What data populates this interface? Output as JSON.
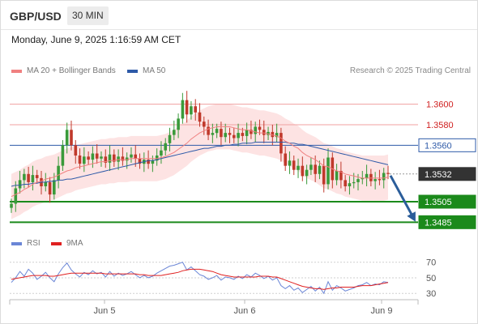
{
  "header": {
    "symbol": "GBP/USD",
    "timeframe": "30 MIN",
    "datetime": "Monday, June 9, 2025 1:16:59 AM CET"
  },
  "legend": {
    "items": [
      {
        "label": "MA 20 + Bollinger Bands",
        "color": "#f08080"
      },
      {
        "label": "MA 50",
        "color": "#2e5aa8"
      }
    ],
    "credit": "Research © 2025 Trading Central"
  },
  "colors": {
    "candle_up": "#3a9a3a",
    "candle_down": "#c0392b",
    "ma20": "#f08080",
    "ma50": "#2e5aa8",
    "bollinger_fill": "#fde3e3",
    "resistance": "#f0a0a0",
    "pivot": "#2e5aa8",
    "support": "#1b8a1b",
    "last_price": "#333333",
    "arrow": "#2b5d9a",
    "rsi": "#6b86d6",
    "rsi_ma": "#e02020"
  },
  "chart_data": [
    {
      "type": "candlestick",
      "x_ticks": [
        "Jun 5",
        "Jun 6",
        "Jun 9"
      ],
      "ylim": [
        1.3475,
        1.3625
      ],
      "closes": [
        1.3503,
        1.3518,
        1.3526,
        1.3532,
        1.3524,
        1.3531,
        1.3528,
        1.352,
        1.3524,
        1.3512,
        1.3526,
        1.354,
        1.356,
        1.3575,
        1.356,
        1.355,
        1.3542,
        1.3549,
        1.3546,
        1.3552,
        1.3547,
        1.3549,
        1.3543,
        1.3551,
        1.3544,
        1.3549,
        1.3545,
        1.3548,
        1.3551,
        1.3547,
        1.3542,
        1.3546,
        1.3542,
        1.3545,
        1.355,
        1.3555,
        1.3562,
        1.357,
        1.3575,
        1.3586,
        1.3604,
        1.359,
        1.3598,
        1.3592,
        1.3583,
        1.3578,
        1.357,
        1.3572,
        1.3576,
        1.3568,
        1.3572,
        1.357,
        1.3567,
        1.3572,
        1.3569,
        1.3575,
        1.3571,
        1.3578,
        1.3575,
        1.357,
        1.3573,
        1.3568,
        1.3572,
        1.3552,
        1.354,
        1.3545,
        1.3536,
        1.354,
        1.353,
        1.3536,
        1.3541,
        1.3532,
        1.354,
        1.3522,
        1.3548,
        1.3526,
        1.3535,
        1.3526,
        1.352,
        1.3523,
        1.3524,
        1.3527,
        1.3528,
        1.3532,
        1.3525,
        1.3527,
        1.3526,
        1.3533,
        1.3532
      ],
      "ma20": [
        1.351,
        1.3512,
        1.3514,
        1.3517,
        1.3519,
        1.3522,
        1.3524,
        1.3525,
        1.3527,
        1.3528,
        1.3529,
        1.3531,
        1.3533,
        1.3535,
        1.3536,
        1.3538,
        1.3539,
        1.354,
        1.3541,
        1.3542,
        1.3543,
        1.3544,
        1.3544,
        1.3545,
        1.3545,
        1.3546,
        1.3546,
        1.3546,
        1.3547,
        1.3547,
        1.3547,
        1.3547,
        1.3547,
        1.3547,
        1.3547,
        1.3548,
        1.3549,
        1.3551,
        1.3553,
        1.3556,
        1.3559,
        1.3562,
        1.3566,
        1.3569,
        1.3572,
        1.3574,
        1.3576,
        1.3577,
        1.3578,
        1.3578,
        1.3578,
        1.3578,
        1.3577,
        1.3576,
        1.3575,
        1.3575,
        1.3574,
        1.3573,
        1.3572,
        1.3572,
        1.3571,
        1.357,
        1.3569,
        1.3567,
        1.3564,
        1.3562,
        1.3559,
        1.3557,
        1.3553,
        1.355,
        1.3548,
        1.3546,
        1.3543,
        1.354,
        1.3539,
        1.3537,
        1.3535,
        1.3534,
        1.3532,
        1.3531,
        1.353,
        1.3529,
        1.3528,
        1.3528,
        1.3528,
        1.3528,
        1.3528,
        1.3528,
        1.3529
      ],
      "ma50": [
        1.352,
        1.3521,
        1.3521,
        1.3522,
        1.3522,
        1.3523,
        1.3523,
        1.3524,
        1.3524,
        1.3525,
        1.3525,
        1.3526,
        1.3526,
        1.3527,
        1.3527,
        1.3528,
        1.3529,
        1.353,
        1.3531,
        1.3532,
        1.3533,
        1.3534,
        1.3535,
        1.3536,
        1.3537,
        1.3538,
        1.3539,
        1.354,
        1.3541,
        1.3542,
        1.3543,
        1.3544,
        1.3545,
        1.3545,
        1.3546,
        1.3547,
        1.3548,
        1.3549,
        1.355,
        1.3551,
        1.3552,
        1.3553,
        1.3554,
        1.3555,
        1.3556,
        1.3557,
        1.3557,
        1.3558,
        1.3559,
        1.3559,
        1.356,
        1.356,
        1.3561,
        1.3561,
        1.3562,
        1.3562,
        1.3562,
        1.3563,
        1.3563,
        1.3563,
        1.3563,
        1.3563,
        1.3563,
        1.3563,
        1.3563,
        1.3562,
        1.3562,
        1.3561,
        1.3561,
        1.356,
        1.3559,
        1.3558,
        1.3557,
        1.3556,
        1.3555,
        1.3554,
        1.3553,
        1.3552,
        1.3551,
        1.355,
        1.3549,
        1.3548,
        1.3547,
        1.3546,
        1.3545,
        1.3544,
        1.3543,
        1.3542,
        1.3541
      ],
      "bollinger_width": 0.0022,
      "levels": [
        {
          "label": "1.3600",
          "value": 1.36,
          "kind": "resistance"
        },
        {
          "label": "1.3580",
          "value": 1.358,
          "kind": "resistance"
        },
        {
          "label": "1.3560",
          "value": 1.356,
          "kind": "pivot"
        },
        {
          "label": "1.3532",
          "value": 1.3532,
          "kind": "last"
        },
        {
          "label": "1.3505",
          "value": 1.3505,
          "kind": "support"
        },
        {
          "label": "1.3485",
          "value": 1.3485,
          "kind": "support"
        }
      ],
      "forecast_arrow": {
        "from": 1.3532,
        "to": 1.3485
      }
    },
    {
      "type": "line",
      "series": [
        {
          "name": "RSI",
          "color": "#6b86d6"
        },
        {
          "name": "9MA",
          "color": "#e02020"
        }
      ],
      "ylim": [
        25,
        78
      ],
      "y_ticks": [
        "70",
        "50",
        "30"
      ],
      "rsi": [
        44,
        50,
        58,
        52,
        61,
        56,
        48,
        52,
        57,
        50,
        45,
        55,
        63,
        69,
        60,
        55,
        51,
        57,
        54,
        59,
        55,
        57,
        51,
        58,
        52,
        56,
        53,
        55,
        58,
        54,
        50,
        53,
        50,
        52,
        56,
        59,
        62,
        65,
        66,
        68,
        70,
        60,
        64,
        59,
        54,
        52,
        48,
        50,
        53,
        47,
        51,
        50,
        48,
        52,
        49,
        54,
        51,
        56,
        53,
        49,
        52,
        47,
        50,
        40,
        36,
        40,
        34,
        37,
        31,
        35,
        39,
        33,
        38,
        30,
        45,
        34,
        40,
        37,
        33,
        35,
        37,
        40,
        41,
        44,
        40,
        42,
        41,
        45,
        44
      ],
      "rsi_ma": [
        48,
        49,
        50,
        51,
        52,
        53,
        53,
        53,
        53,
        52,
        52,
        53,
        54,
        55,
        56,
        56,
        56,
        56,
        56,
        56,
        56,
        56,
        55,
        55,
        55,
        55,
        55,
        55,
        55,
        55,
        54,
        54,
        53,
        53,
        53,
        53,
        54,
        55,
        56,
        57,
        59,
        60,
        61,
        61,
        61,
        60,
        59,
        58,
        56,
        54,
        53,
        52,
        51,
        51,
        51,
        51,
        51,
        51,
        52,
        52,
        52,
        51,
        51,
        49,
        47,
        45,
        43,
        41,
        39,
        38,
        37,
        36,
        36,
        35,
        36,
        37,
        37,
        38,
        38,
        38,
        38,
        39,
        40,
        40,
        40,
        41,
        42,
        43,
        44
      ]
    }
  ]
}
